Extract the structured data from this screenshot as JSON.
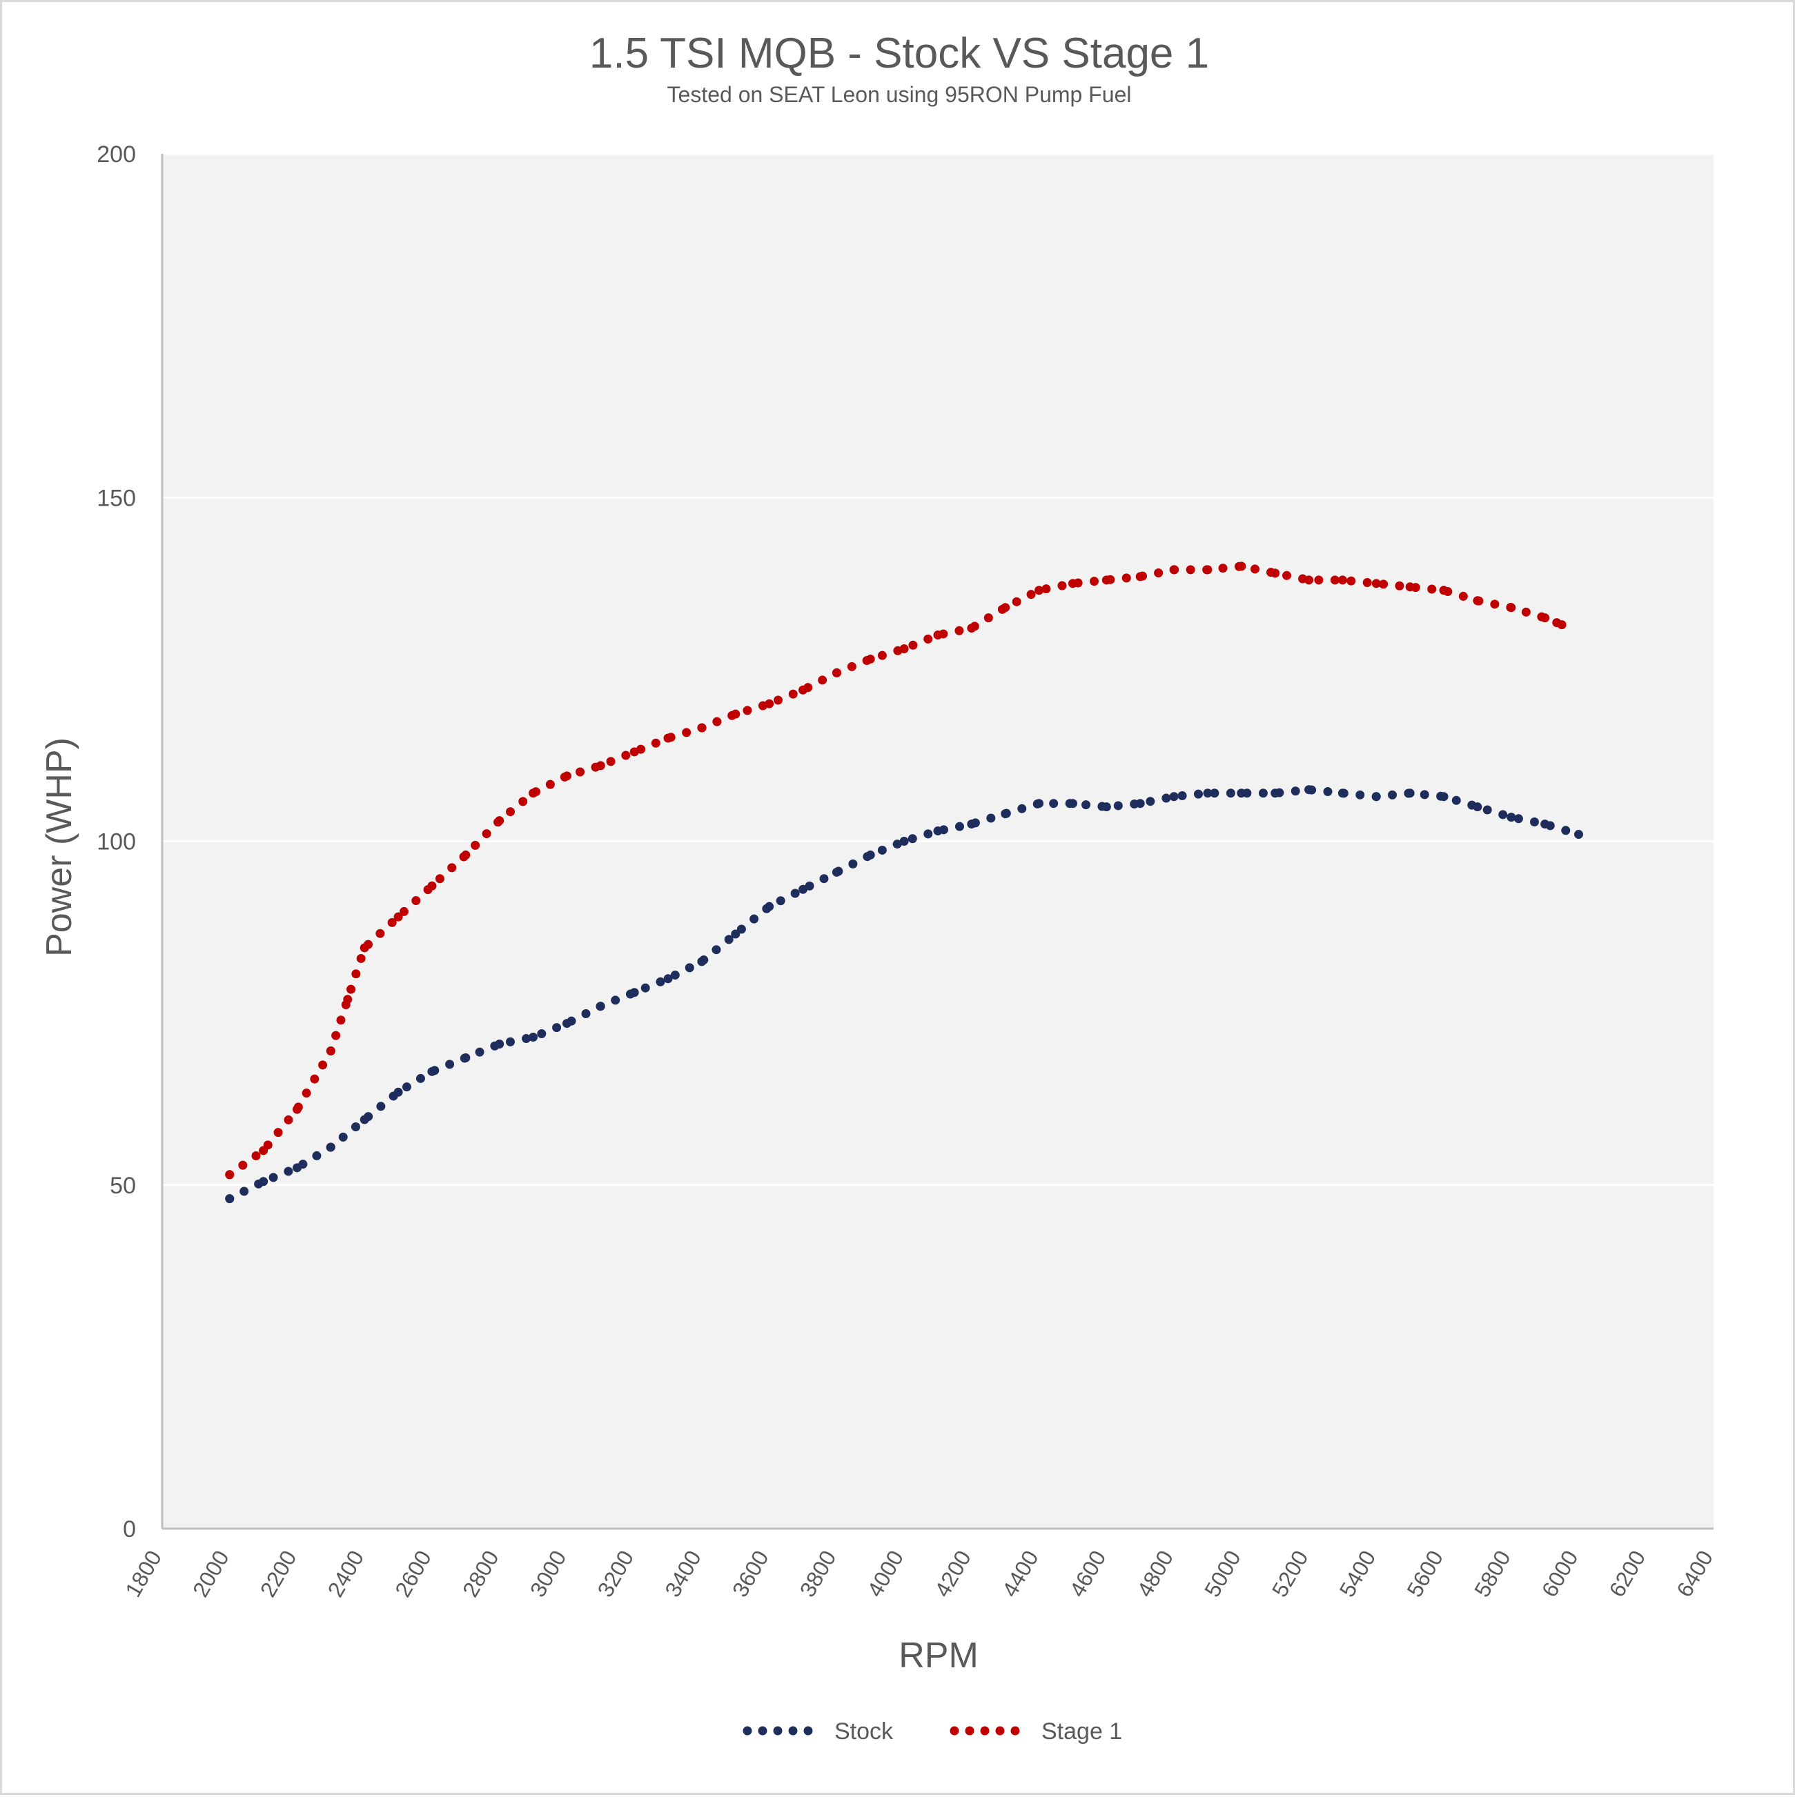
{
  "chart_data": {
    "type": "line",
    "line_style": "dotted",
    "title": "1.5 TSI MQB - Stock VS Stage 1",
    "subtitle": "Tested on SEAT Leon using 95RON Pump Fuel",
    "xlabel": "RPM",
    "ylabel": "Power (WHP)",
    "xlim": [
      1800,
      6400
    ],
    "ylim": [
      0,
      200
    ],
    "x_ticks": [
      1800,
      2000,
      2200,
      2400,
      2600,
      2800,
      3000,
      3200,
      3400,
      3600,
      3800,
      4000,
      4200,
      4400,
      4600,
      4800,
      5000,
      5200,
      5400,
      5600,
      5800,
      6000,
      6200,
      6400
    ],
    "y_ticks": [
      0,
      50,
      100,
      150,
      200
    ],
    "grid": "horizontal",
    "plot_background": "#f2f2f2",
    "legend_position": "bottom",
    "series": [
      {
        "name": "Stock",
        "color": "#1f2d5c",
        "points": [
          [
            2000,
            48
          ],
          [
            2100,
            50.5
          ],
          [
            2200,
            52.5
          ],
          [
            2300,
            55.5
          ],
          [
            2400,
            59.5
          ],
          [
            2500,
            63.5
          ],
          [
            2600,
            66.5
          ],
          [
            2700,
            68.5
          ],
          [
            2800,
            70.5
          ],
          [
            2900,
            71.5
          ],
          [
            3000,
            73.5
          ],
          [
            3100,
            76
          ],
          [
            3200,
            78
          ],
          [
            3300,
            80
          ],
          [
            3400,
            82.5
          ],
          [
            3500,
            86.5
          ],
          [
            3600,
            90.5
          ],
          [
            3700,
            93
          ],
          [
            3800,
            95.5
          ],
          [
            3900,
            98
          ],
          [
            4000,
            100
          ],
          [
            4100,
            101.5
          ],
          [
            4200,
            102.5
          ],
          [
            4300,
            104
          ],
          [
            4400,
            105.5
          ],
          [
            4500,
            105.5
          ],
          [
            4600,
            105
          ],
          [
            4700,
            105.5
          ],
          [
            4800,
            106.5
          ],
          [
            4900,
            107
          ],
          [
            5000,
            107
          ],
          [
            5100,
            107
          ],
          [
            5200,
            107.5
          ],
          [
            5300,
            107
          ],
          [
            5400,
            106.5
          ],
          [
            5500,
            107
          ],
          [
            5600,
            106.5
          ],
          [
            5700,
            105
          ],
          [
            5800,
            103.5
          ],
          [
            5900,
            102.5
          ],
          [
            6000,
            101
          ]
        ]
      },
      {
        "name": "Stage 1",
        "color": "#c00000",
        "points": [
          [
            2000,
            51.5
          ],
          [
            2100,
            55
          ],
          [
            2200,
            61
          ],
          [
            2300,
            69.5
          ],
          [
            2350,
            77
          ],
          [
            2400,
            84.5
          ],
          [
            2500,
            89
          ],
          [
            2600,
            93.5
          ],
          [
            2700,
            98
          ],
          [
            2800,
            103
          ],
          [
            2900,
            107
          ],
          [
            3000,
            109.5
          ],
          [
            3100,
            111
          ],
          [
            3200,
            113
          ],
          [
            3300,
            115
          ],
          [
            3400,
            116.5
          ],
          [
            3500,
            118.5
          ],
          [
            3600,
            120
          ],
          [
            3700,
            122
          ],
          [
            3800,
            124.5
          ],
          [
            3900,
            126.5
          ],
          [
            4000,
            128
          ],
          [
            4100,
            130
          ],
          [
            4200,
            131
          ],
          [
            4300,
            134
          ],
          [
            4400,
            136.5
          ],
          [
            4500,
            137.5
          ],
          [
            4600,
            138
          ],
          [
            4700,
            138.5
          ],
          [
            4800,
            139.5
          ],
          [
            4900,
            139.5
          ],
          [
            5000,
            140
          ],
          [
            5100,
            139
          ],
          [
            5200,
            138
          ],
          [
            5300,
            138
          ],
          [
            5400,
            137.5
          ],
          [
            5500,
            137
          ],
          [
            5600,
            136.5
          ],
          [
            5700,
            135
          ],
          [
            5800,
            134
          ],
          [
            5900,
            132.5
          ],
          [
            5950,
            131.5
          ]
        ]
      }
    ]
  }
}
